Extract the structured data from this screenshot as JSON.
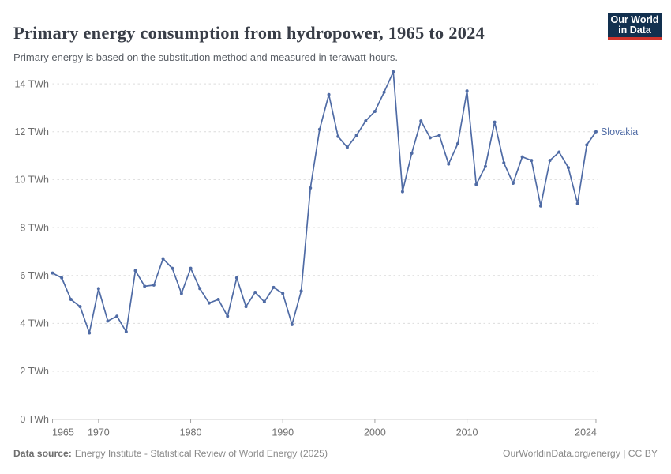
{
  "header": {
    "title": "Primary energy consumption from hydropower, 1965 to 2024",
    "subtitle": "Primary energy is based on the substitution method and measured in terawatt-hours.",
    "logo": {
      "line1": "Our World",
      "line2": "in Data"
    }
  },
  "chart_data": {
    "type": "line",
    "title": "Primary energy consumption from hydropower, 1965 to 2024",
    "unit": "TWh",
    "xlim": [
      1965,
      2024
    ],
    "ylim": [
      0,
      14.6
    ],
    "grid": "horizontal dashed gridlines, solid zero axis",
    "legend": "entity label at right end of line",
    "x_ticks": [
      1965,
      1970,
      1980,
      1990,
      2000,
      2010,
      2024
    ],
    "x_tick_labels": [
      "1965",
      "1970",
      "1980",
      "1990",
      "2000",
      "2010",
      "2024"
    ],
    "y_ticks": [
      0,
      2,
      4,
      6,
      8,
      10,
      12,
      14
    ],
    "y_tick_labels": [
      "0 TWh",
      "2 TWh",
      "4 TWh",
      "6 TWh",
      "8 TWh",
      "10 TWh",
      "12 TWh",
      "14 TWh"
    ],
    "series": [
      {
        "name": "Slovakia",
        "color": "#4f6ba5",
        "x": [
          1965,
          1966,
          1967,
          1968,
          1969,
          1970,
          1971,
          1972,
          1973,
          1974,
          1975,
          1976,
          1977,
          1978,
          1979,
          1980,
          1981,
          1982,
          1983,
          1984,
          1985,
          1986,
          1987,
          1988,
          1989,
          1990,
          1991,
          1992,
          1993,
          1994,
          1995,
          1996,
          1997,
          1998,
          1999,
          2000,
          2001,
          2002,
          2003,
          2004,
          2005,
          2006,
          2007,
          2008,
          2009,
          2010,
          2011,
          2012,
          2013,
          2014,
          2015,
          2016,
          2017,
          2018,
          2019,
          2020,
          2021,
          2022,
          2023,
          2024
        ],
        "values": [
          6.1,
          5.9,
          5.0,
          4.7,
          3.6,
          5.45,
          4.1,
          4.3,
          3.65,
          6.2,
          5.55,
          5.6,
          6.7,
          6.3,
          5.25,
          6.3,
          5.45,
          4.85,
          5.0,
          4.3,
          5.9,
          4.7,
          5.3,
          4.9,
          5.5,
          5.25,
          3.95,
          5.35,
          9.65,
          12.1,
          13.55,
          11.8,
          11.35,
          11.85,
          12.45,
          12.85,
          13.65,
          14.5,
          9.5,
          11.1,
          12.45,
          11.75,
          11.85,
          10.65,
          11.5,
          13.7,
          9.8,
          10.55,
          12.4,
          10.7,
          9.85,
          10.95,
          10.8,
          8.9,
          10.8,
          11.15,
          10.5,
          9.0,
          11.45,
          12.0
        ]
      }
    ]
  },
  "footer": {
    "source_label": "Data source:",
    "source_text": "Energy Institute - Statistical Review of World Energy (2025)",
    "credit": "OurWorldinData.org/energy | CC BY"
  },
  "colors": {
    "line": "#4f6ba5",
    "entity_label": "#4f6ba5",
    "gridline": "#dcdcdc",
    "axis": "#a3a3a3",
    "tick_text": "#6e6e6e",
    "title_text": "#383d47",
    "subtitle_text": "#5a5f66",
    "footer_text": "#8a8a8a",
    "logo_bg": "#12304f",
    "logo_stripe": "#d0342c"
  }
}
